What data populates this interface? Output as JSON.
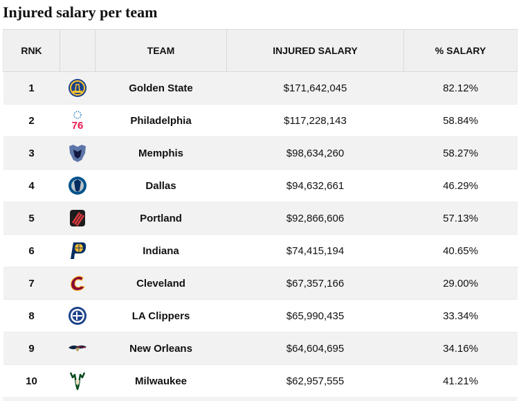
{
  "title": "Injured salary per team",
  "table": {
    "columns": [
      "RNK",
      "",
      "TEAM",
      "INJURED SALARY",
      "% SALARY"
    ],
    "rows": [
      {
        "rank": "1",
        "logo": "warriors-logo-icon",
        "team": "Golden State",
        "salary": "$171,642,045",
        "pct": "82.12%"
      },
      {
        "rank": "2",
        "logo": "76ers-logo-icon",
        "team": "Philadelphia",
        "salary": "$117,228,143",
        "pct": "58.84%"
      },
      {
        "rank": "3",
        "logo": "grizzlies-logo-icon",
        "team": "Memphis",
        "salary": "$98,634,260",
        "pct": "58.27%"
      },
      {
        "rank": "4",
        "logo": "mavericks-logo-icon",
        "team": "Dallas",
        "salary": "$94,632,661",
        "pct": "46.29%"
      },
      {
        "rank": "5",
        "logo": "blazers-logo-icon",
        "team": "Portland",
        "salary": "$92,866,606",
        "pct": "57.13%"
      },
      {
        "rank": "6",
        "logo": "pacers-logo-icon",
        "team": "Indiana",
        "salary": "$74,415,194",
        "pct": "40.65%"
      },
      {
        "rank": "7",
        "logo": "cavaliers-logo-icon",
        "team": "Cleveland",
        "salary": "$67,357,166",
        "pct": "29.00%"
      },
      {
        "rank": "8",
        "logo": "clippers-logo-icon",
        "team": "LA Clippers",
        "salary": "$65,990,435",
        "pct": "33.34%"
      },
      {
        "rank": "9",
        "logo": "pelicans-logo-icon",
        "team": "New Orleans",
        "salary": "$64,604,695",
        "pct": "34.16%"
      },
      {
        "rank": "10",
        "logo": "bucks-logo-icon",
        "team": "Milwaukee",
        "salary": "$62,957,555",
        "pct": "41.21%"
      }
    ]
  }
}
